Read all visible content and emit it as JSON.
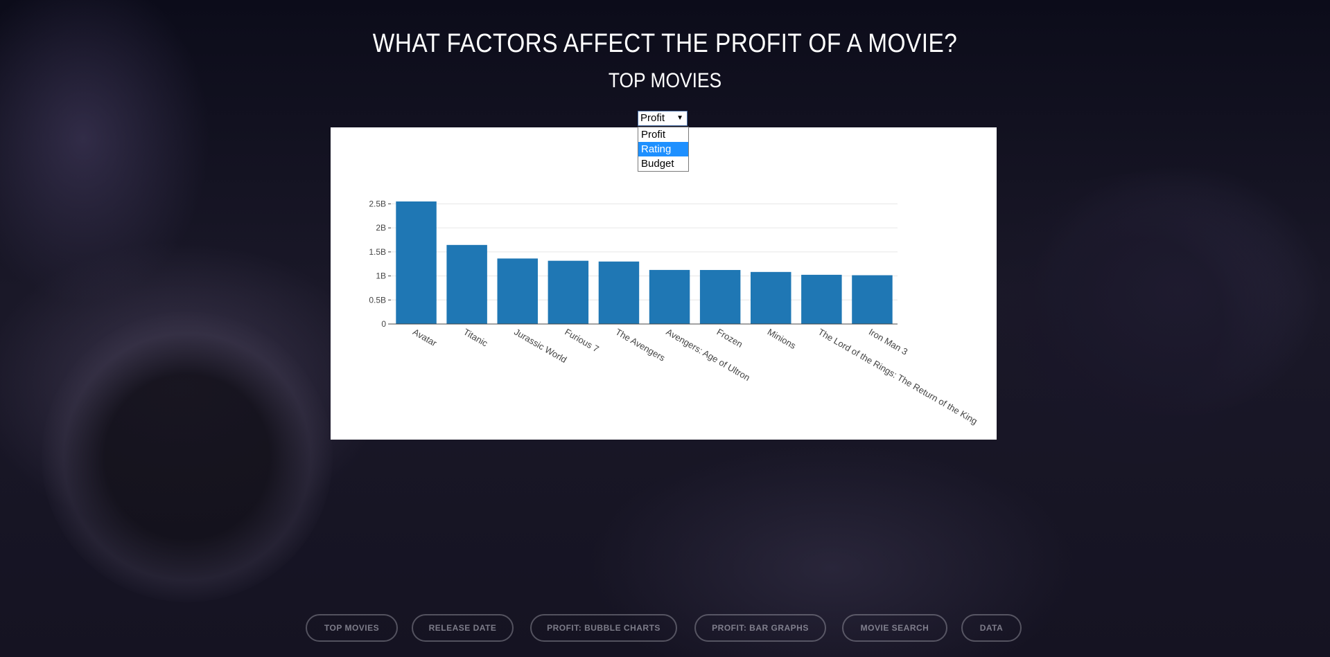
{
  "header": {
    "title": "WHAT FACTORS AFFECT THE PROFIT OF A MOVIE?",
    "subtitle": "TOP MOVIES"
  },
  "metric_select": {
    "value": "Profit",
    "options": [
      "Profit",
      "Rating",
      "Budget"
    ],
    "highlighted": "Rating"
  },
  "chart_data": {
    "type": "bar",
    "categories": [
      "Avatar",
      "Titanic",
      "Jurassic World",
      "Furious 7",
      "The Avengers",
      "Avengers: Age of Ultron",
      "Frozen",
      "Minions",
      "The Lord of the Rings: The Return of the King",
      "Iron Man 3"
    ],
    "values": [
      2550000000,
      1645000000,
      1363000000,
      1316000000,
      1300000000,
      1125000000,
      1124000000,
      1083000000,
      1024000000,
      1015000000
    ],
    "yticks": [
      "0",
      "0.5B",
      "1B",
      "1.5B",
      "2B",
      "2.5B"
    ],
    "ytick_values": [
      0,
      500000000,
      1000000000,
      1500000000,
      2000000000,
      2500000000
    ],
    "ylim": [
      0,
      2550000000
    ],
    "bar_color": "#1f77b4",
    "grid": true
  },
  "nav": {
    "items": [
      "TOP MOVIES",
      "RELEASE DATE",
      "PROFIT: BUBBLE CHARTS",
      "PROFIT: BAR GRAPHS",
      "MOVIE SEARCH",
      "DATA"
    ]
  }
}
